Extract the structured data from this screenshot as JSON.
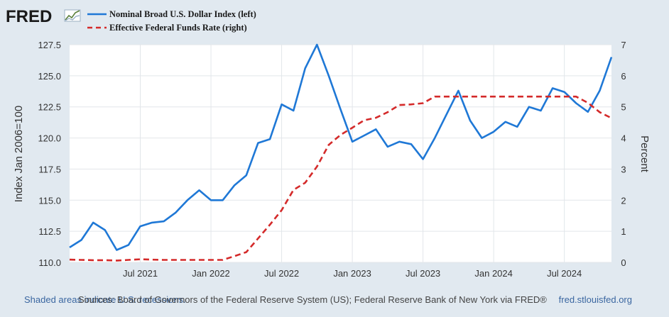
{
  "header": {
    "logo_text": "FRED",
    "logo_icon": "line-chart-icon"
  },
  "colors": {
    "background": "#e1e9f0",
    "plot_background": "#ffffff",
    "gridline": "#e2e6ea",
    "series_blue": "#1f78d6",
    "series_red": "#d42a2a",
    "footer_link": "#3a66a0"
  },
  "chart_data": {
    "type": "line",
    "title": "",
    "legend": [
      {
        "name": "Nominal Broad U.S. Dollar Index (left)",
        "style": "solid",
        "color": "#1f78d6"
      },
      {
        "name": "Effective Federal Funds Rate (right)",
        "style": "dashed",
        "color": "#d42a2a"
      }
    ],
    "ylabel_left": "Index Jan 2006=100",
    "ylabel_right": "Percent",
    "ylim_left": [
      110.0,
      127.5
    ],
    "ylim_right": [
      0,
      7
    ],
    "yticks_left": [
      "110.0",
      "112.5",
      "115.0",
      "117.5",
      "120.0",
      "122.5",
      "125.0",
      "127.5"
    ],
    "yticks_right": [
      "0",
      "1",
      "2",
      "3",
      "4",
      "5",
      "6",
      "7"
    ],
    "x_range": [
      "2021-01",
      "2024-11"
    ],
    "x_ticks": [
      {
        "label": "Jul 2021",
        "index": 6
      },
      {
        "label": "Jan 2022",
        "index": 12
      },
      {
        "label": "Jul 2022",
        "index": 18
      },
      {
        "label": "Jan 2023",
        "index": 24
      },
      {
        "label": "Jul 2023",
        "index": 30
      },
      {
        "label": "Jan 2024",
        "index": 36
      },
      {
        "label": "Jul 2024",
        "index": 42
      }
    ],
    "series": [
      {
        "name": "Nominal Broad U.S. Dollar Index (left)",
        "axis": "left",
        "values": [
          111.2,
          111.8,
          113.2,
          112.6,
          111.0,
          111.4,
          112.9,
          113.2,
          113.3,
          114.0,
          115.0,
          115.8,
          115.0,
          115.0,
          116.2,
          117.0,
          119.6,
          119.9,
          122.7,
          122.2,
          125.6,
          127.5,
          125.0,
          122.3,
          119.7,
          120.2,
          120.7,
          119.3,
          119.7,
          119.5,
          118.3,
          120.0,
          121.9,
          123.8,
          121.4,
          120.0,
          120.5,
          121.3,
          120.9,
          122.5,
          122.2,
          124.0,
          123.7,
          122.8,
          122.1,
          123.8,
          126.5
        ]
      },
      {
        "name": "Effective Federal Funds Rate (right)",
        "axis": "right",
        "values": [
          0.09,
          0.08,
          0.07,
          0.07,
          0.06,
          0.08,
          0.1,
          0.09,
          0.08,
          0.08,
          0.08,
          0.08,
          0.08,
          0.08,
          0.2,
          0.33,
          0.77,
          1.21,
          1.68,
          2.33,
          2.56,
          3.08,
          3.78,
          4.1,
          4.33,
          4.57,
          4.65,
          4.83,
          5.06,
          5.08,
          5.12,
          5.33,
          5.33,
          5.33,
          5.33,
          5.33,
          5.33,
          5.33,
          5.33,
          5.33,
          5.33,
          5.33,
          5.33,
          5.33,
          5.13,
          4.83,
          4.64
        ]
      }
    ]
  },
  "footer": {
    "left_note": "Shaded areas indicate U.S. recessions.",
    "source": "Sources: Board of Governors of the Federal Reserve System (US); Federal Reserve Bank of New York via FRED®",
    "right_link": "fred.stlouisfed.org"
  }
}
